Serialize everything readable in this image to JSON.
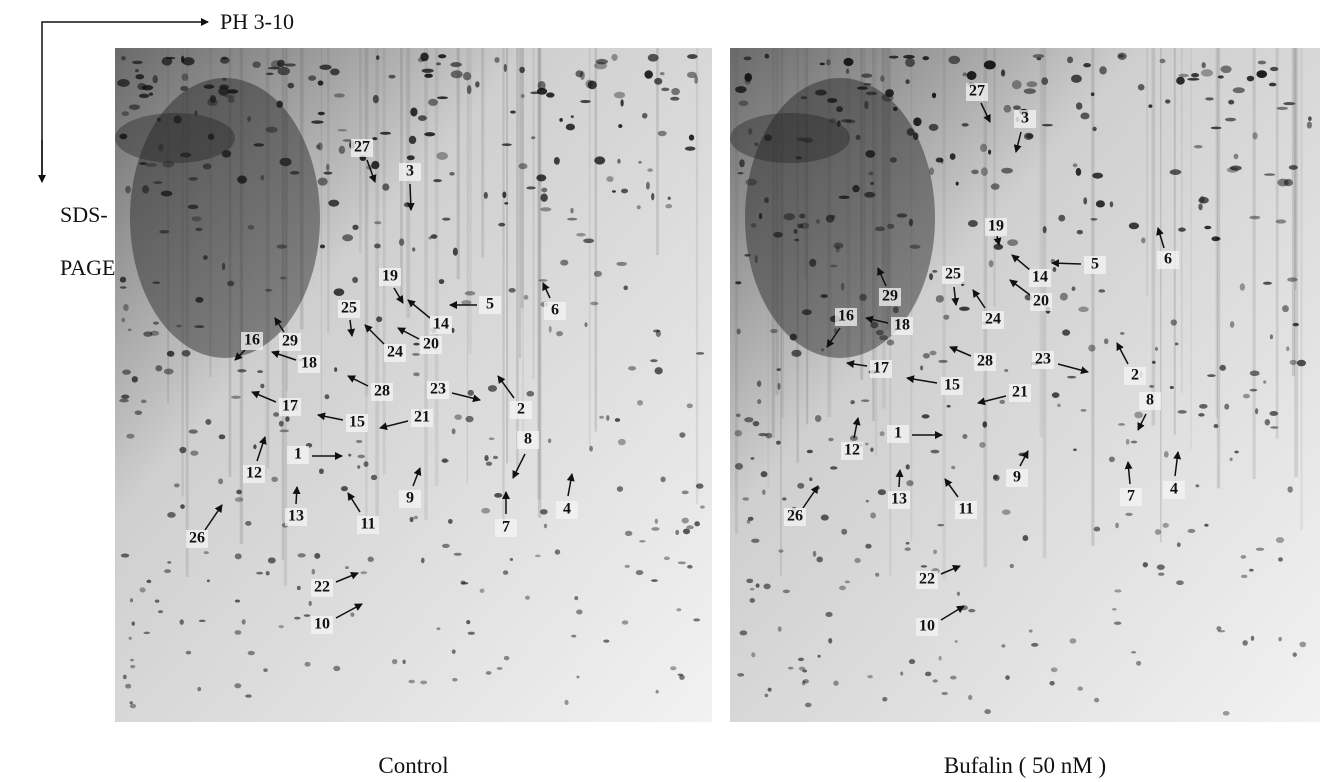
{
  "header": {
    "ph_label": "PH 3-10",
    "sds_label": [
      "SDS-",
      "PAGE"
    ]
  },
  "panels": [
    {
      "caption": "Control",
      "spots": [
        "1",
        "2",
        "3",
        "4",
        "5",
        "6",
        "7",
        "8",
        "9",
        "10",
        "11",
        "12",
        "13",
        "14",
        "15",
        "16",
        "17",
        "18",
        "19",
        "20",
        "21",
        "22",
        "23",
        "24",
        "25",
        "26",
        "27",
        "28",
        "29"
      ]
    },
    {
      "caption": "Bufalin ( 50 nM )",
      "spots": [
        "1",
        "2",
        "3",
        "4",
        "5",
        "6",
        "7",
        "8",
        "9",
        "10",
        "11",
        "12",
        "13",
        "14",
        "15",
        "16",
        "17",
        "18",
        "19",
        "20",
        "21",
        "22",
        "23",
        "24",
        "25",
        "26",
        "27",
        "28",
        "29"
      ]
    }
  ]
}
